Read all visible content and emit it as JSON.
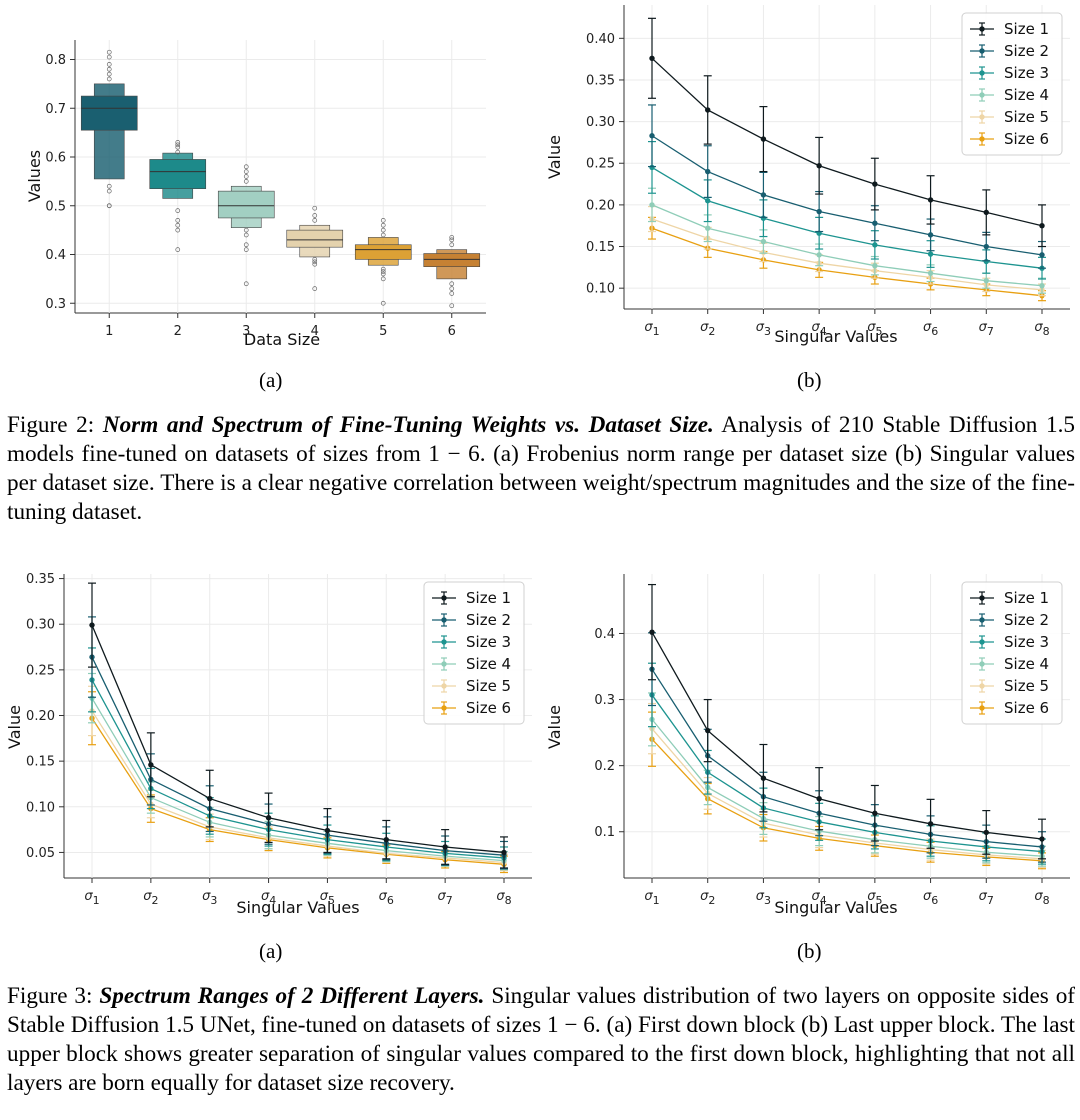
{
  "figure2": {
    "panel_a_label": "(a)",
    "panel_b_label": "(b)",
    "caption_prefix": "Figure 2:",
    "caption_title": "Norm and Spectrum of Fine-Tuning Weights vs. Dataset Size.",
    "caption_body": "Analysis of 210 Stable Diffusion 1.5 models fine-tuned on datasets of sizes from 1 − 6. (a) Frobenius norm range per dataset size (b) Singular values per dataset size. There is a clear negative correlation between weight/spectrum magnitudes and the size of the fine-tuning dataset."
  },
  "figure3": {
    "panel_a_label": "(a)",
    "panel_b_label": "(b)",
    "caption_prefix": "Figure 3:",
    "caption_title": "Spectrum Ranges of 2 Different Layers.",
    "caption_body": "Singular values distribution of two layers on opposite sides of Stable Diffusion 1.5 UNet, fine-tuned on datasets of sizes 1 − 6. (a) First down block (b) Last upper block. The last upper block shows greater separation of singular values compared to the first down block, highlighting that not all layers are born equally for dataset size recovery."
  },
  "colors": [
    "#0f1a1e",
    "#185e70",
    "#1d9490",
    "#8fcdb8",
    "#eed5a6",
    "#e8a012"
  ],
  "chart_data": [
    {
      "id": "fig2a",
      "type": "boxen",
      "title": "",
      "xlabel": "Data Size",
      "ylabel": "Values",
      "categories": [
        "1",
        "2",
        "3",
        "4",
        "5",
        "6"
      ],
      "ylim": [
        0.28,
        0.84
      ],
      "yticks": [
        0.3,
        0.4,
        0.5,
        0.6,
        0.7,
        0.8
      ],
      "grid": true,
      "box_colors": [
        "#1a5f70",
        "#1d8a8a",
        "#a2cfc2",
        "#e4d2ad",
        "#dca135",
        "#c68133"
      ],
      "medians": [
        0.7,
        0.57,
        0.5,
        0.43,
        0.41,
        0.39
      ],
      "boxes": [
        [
          [
            0.655,
            0.725
          ],
          [
            0.555,
            0.75
          ]
        ],
        [
          [
            0.535,
            0.595
          ],
          [
            0.515,
            0.608
          ]
        ],
        [
          [
            0.475,
            0.53
          ],
          [
            0.455,
            0.54
          ]
        ],
        [
          [
            0.415,
            0.45
          ],
          [
            0.395,
            0.46
          ]
        ],
        [
          [
            0.39,
            0.42
          ],
          [
            0.378,
            0.435
          ]
        ],
        [
          [
            0.375,
            0.402
          ],
          [
            0.35,
            0.41
          ]
        ]
      ],
      "outliers": [
        [
          0.815,
          0.805,
          0.79,
          0.78,
          0.77,
          0.76,
          0.54,
          0.53,
          0.5,
          0.5
        ],
        [
          0.63,
          0.625,
          0.62,
          0.61,
          0.49,
          0.47,
          0.46,
          0.45,
          0.41
        ],
        [
          0.58,
          0.57,
          0.56,
          0.55,
          0.45,
          0.44,
          0.42,
          0.41,
          0.34
        ],
        [
          0.495,
          0.48,
          0.47,
          0.39,
          0.385,
          0.38,
          0.33
        ],
        [
          0.47,
          0.46,
          0.45,
          0.44,
          0.37,
          0.365,
          0.36,
          0.35,
          0.3
        ],
        [
          0.435,
          0.43,
          0.42,
          0.34,
          0.33,
          0.32,
          0.295
        ]
      ]
    },
    {
      "id": "fig2b",
      "type": "line",
      "title": "",
      "xlabel": "Singular Values",
      "ylabel": "Value",
      "categories": [
        "σ1",
        "σ2",
        "σ3",
        "σ4",
        "σ5",
        "σ6",
        "σ7",
        "σ8"
      ],
      "ylim": [
        0.075,
        0.44
      ],
      "yticks": [
        0.1,
        0.15,
        0.2,
        0.25,
        0.3,
        0.35,
        0.4
      ],
      "tick_decimals": 2,
      "grid": true,
      "legend": "top-right",
      "series": [
        {
          "name": "Size 1",
          "values": [
            0.376,
            0.314,
            0.279,
            0.247,
            0.225,
            0.206,
            0.191,
            0.175
          ],
          "err": [
            0.048,
            0.041,
            0.039,
            0.034,
            0.031,
            0.029,
            0.027,
            0.025
          ]
        },
        {
          "name": "Size 2",
          "values": [
            0.283,
            0.24,
            0.212,
            0.192,
            0.178,
            0.164,
            0.15,
            0.14
          ],
          "err": [
            0.037,
            0.031,
            0.027,
            0.024,
            0.021,
            0.019,
            0.017,
            0.016
          ]
        },
        {
          "name": "Size 3",
          "values": [
            0.245,
            0.205,
            0.184,
            0.166,
            0.152,
            0.141,
            0.132,
            0.124
          ],
          "err": [
            0.031,
            0.025,
            0.022,
            0.019,
            0.017,
            0.016,
            0.014,
            0.013
          ]
        },
        {
          "name": "Size 4",
          "values": [
            0.2,
            0.172,
            0.156,
            0.14,
            0.127,
            0.118,
            0.109,
            0.103
          ],
          "err": [
            0.02,
            0.016,
            0.014,
            0.013,
            0.011,
            0.01,
            0.009,
            0.009
          ]
        },
        {
          "name": "Size 5",
          "values": [
            0.183,
            0.16,
            0.143,
            0.13,
            0.121,
            0.113,
            0.104,
            0.098
          ],
          "err": [
            0.015,
            0.013,
            0.011,
            0.01,
            0.009,
            0.008,
            0.008,
            0.007
          ]
        },
        {
          "name": "Size 6",
          "values": [
            0.172,
            0.148,
            0.134,
            0.122,
            0.113,
            0.105,
            0.098,
            0.091
          ],
          "err": [
            0.013,
            0.011,
            0.01,
            0.009,
            0.008,
            0.007,
            0.007,
            0.006
          ]
        }
      ]
    },
    {
      "id": "fig3a",
      "type": "line",
      "title": "",
      "xlabel": "Singular Values",
      "ylabel": "Value",
      "categories": [
        "σ1",
        "σ2",
        "σ3",
        "σ4",
        "σ5",
        "σ6",
        "σ7",
        "σ8"
      ],
      "ylim": [
        0.022,
        0.355
      ],
      "yticks": [
        0.05,
        0.1,
        0.15,
        0.2,
        0.25,
        0.3,
        0.35
      ],
      "tick_decimals": 2,
      "grid": true,
      "legend": "top-right",
      "series": [
        {
          "name": "Size 1",
          "values": [
            0.299,
            0.146,
            0.109,
            0.088,
            0.074,
            0.064,
            0.056,
            0.05
          ],
          "err": [
            0.046,
            0.035,
            0.031,
            0.027,
            0.024,
            0.021,
            0.019,
            0.017
          ]
        },
        {
          "name": "Size 2",
          "values": [
            0.264,
            0.13,
            0.098,
            0.081,
            0.069,
            0.06,
            0.052,
            0.047
          ],
          "err": [
            0.044,
            0.028,
            0.025,
            0.022,
            0.02,
            0.018,
            0.016,
            0.015
          ]
        },
        {
          "name": "Size 3",
          "values": [
            0.239,
            0.12,
            0.09,
            0.075,
            0.064,
            0.056,
            0.049,
            0.044
          ],
          "err": [
            0.035,
            0.022,
            0.02,
            0.018,
            0.016,
            0.015,
            0.013,
            0.012
          ]
        },
        {
          "name": "Size 4",
          "values": [
            0.219,
            0.11,
            0.083,
            0.069,
            0.06,
            0.052,
            0.046,
            0.041
          ],
          "err": [
            0.027,
            0.017,
            0.016,
            0.015,
            0.013,
            0.012,
            0.011,
            0.01
          ]
        },
        {
          "name": "Size 5",
          "values": [
            0.205,
            0.103,
            0.078,
            0.066,
            0.057,
            0.049,
            0.044,
            0.039
          ],
          "err": [
            0.027,
            0.015,
            0.014,
            0.012,
            0.011,
            0.01,
            0.009,
            0.009
          ]
        },
        {
          "name": "Size 6",
          "values": [
            0.197,
            0.098,
            0.075,
            0.064,
            0.055,
            0.048,
            0.042,
            0.037
          ],
          "err": [
            0.029,
            0.015,
            0.013,
            0.012,
            0.011,
            0.01,
            0.009,
            0.009
          ]
        }
      ]
    },
    {
      "id": "fig3b",
      "type": "line",
      "title": "",
      "xlabel": "Singular Values",
      "ylabel": "Value",
      "categories": [
        "σ1",
        "σ2",
        "σ3",
        "σ4",
        "σ5",
        "σ6",
        "σ7",
        "σ8"
      ],
      "ylim": [
        0.03,
        0.49
      ],
      "yticks": [
        0.1,
        0.2,
        0.3,
        0.4
      ],
      "tick_decimals": 1,
      "grid": true,
      "legend": "top-right",
      "series": [
        {
          "name": "Size 1",
          "values": [
            0.402,
            0.253,
            0.181,
            0.15,
            0.128,
            0.112,
            0.099,
            0.089
          ],
          "err": [
            0.072,
            0.047,
            0.051,
            0.047,
            0.042,
            0.037,
            0.033,
            0.03
          ]
        },
        {
          "name": "Size 2",
          "values": [
            0.346,
            0.215,
            0.153,
            0.128,
            0.11,
            0.096,
            0.085,
            0.077
          ],
          "err": [
            0.055,
            0.04,
            0.037,
            0.034,
            0.031,
            0.028,
            0.025,
            0.023
          ]
        },
        {
          "name": "Size 3",
          "values": [
            0.307,
            0.19,
            0.136,
            0.115,
            0.099,
            0.086,
            0.077,
            0.07
          ],
          "err": [
            0.048,
            0.033,
            0.03,
            0.028,
            0.025,
            0.023,
            0.021,
            0.019
          ]
        },
        {
          "name": "Size 4",
          "values": [
            0.27,
            0.167,
            0.12,
            0.101,
            0.088,
            0.078,
            0.069,
            0.063
          ],
          "err": [
            0.04,
            0.026,
            0.024,
            0.022,
            0.02,
            0.018,
            0.016,
            0.015
          ]
        },
        {
          "name": "Size 5",
          "values": [
            0.256,
            0.158,
            0.113,
            0.095,
            0.083,
            0.073,
            0.065,
            0.059
          ],
          "err": [
            0.038,
            0.024,
            0.021,
            0.019,
            0.017,
            0.016,
            0.014,
            0.013
          ]
        },
        {
          "name": "Size 6",
          "values": [
            0.24,
            0.15,
            0.106,
            0.09,
            0.079,
            0.069,
            0.062,
            0.056
          ],
          "err": [
            0.041,
            0.023,
            0.02,
            0.018,
            0.016,
            0.015,
            0.013,
            0.012
          ]
        }
      ]
    }
  ]
}
